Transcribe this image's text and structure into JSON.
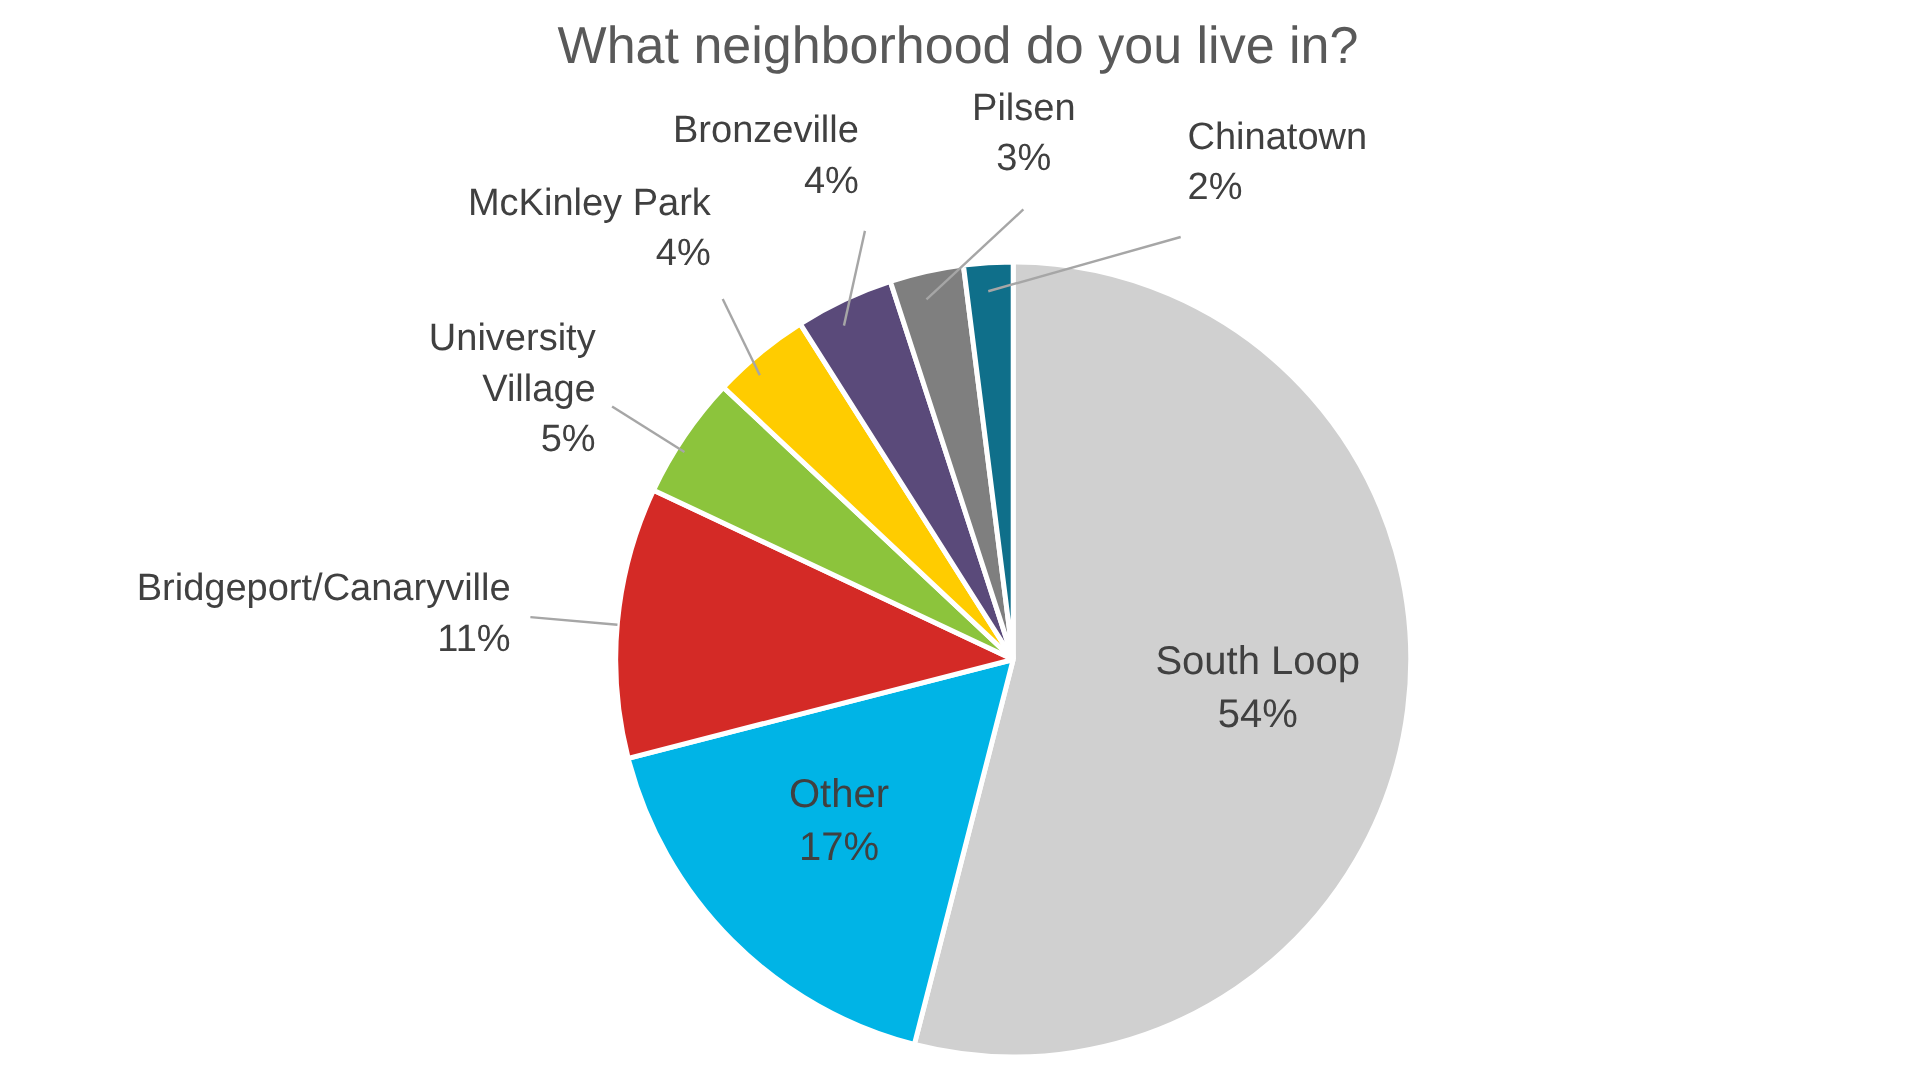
{
  "chart_data": {
    "type": "pie",
    "title": "What neighborhood do you live in?",
    "categories": [
      "South Loop",
      "Other",
      "Bridgeport/Canaryville",
      "University Village",
      "McKinley Park",
      "Bronzeville",
      "Pilsen",
      "Chinatown"
    ],
    "values": [
      54,
      17,
      11,
      5,
      4,
      4,
      3,
      2
    ],
    "value_labels": [
      "54%",
      "17%",
      "11%",
      "5%",
      "4%",
      "4%",
      "3%",
      "2%"
    ],
    "colors": [
      "#d0d0d0",
      "#00b4e6",
      "#d42a26",
      "#8cc43c",
      "#ffcc00",
      "#5a4a7a",
      "#7f7f7f",
      "#0f6f8a"
    ]
  }
}
